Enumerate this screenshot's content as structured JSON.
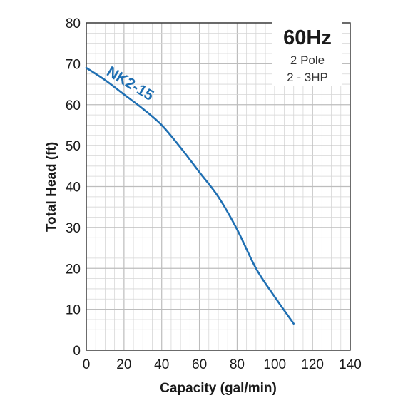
{
  "chart_data": {
    "type": "line",
    "xlabel": "Capacity (gal/min)",
    "ylabel": "Total Head (ft)",
    "xlim": [
      0,
      140
    ],
    "ylim": [
      0,
      80
    ],
    "xticks": [
      0,
      20,
      40,
      60,
      80,
      100,
      120,
      140
    ],
    "yticks": [
      0,
      10,
      20,
      30,
      40,
      50,
      60,
      70,
      80
    ],
    "grid": true,
    "series": [
      {
        "name": "NK2-15",
        "color": "#1f6fb2",
        "x": [
          0,
          10,
          20,
          30,
          40,
          50,
          60,
          70,
          80,
          90,
          100,
          110
        ],
        "y": [
          69,
          66,
          62.5,
          59,
          55,
          49.5,
          43.5,
          37.5,
          29.5,
          20,
          13,
          6.5
        ]
      }
    ],
    "info_box": {
      "title": "60Hz",
      "lines": [
        "2 Pole",
        "2 - 3HP"
      ]
    }
  }
}
